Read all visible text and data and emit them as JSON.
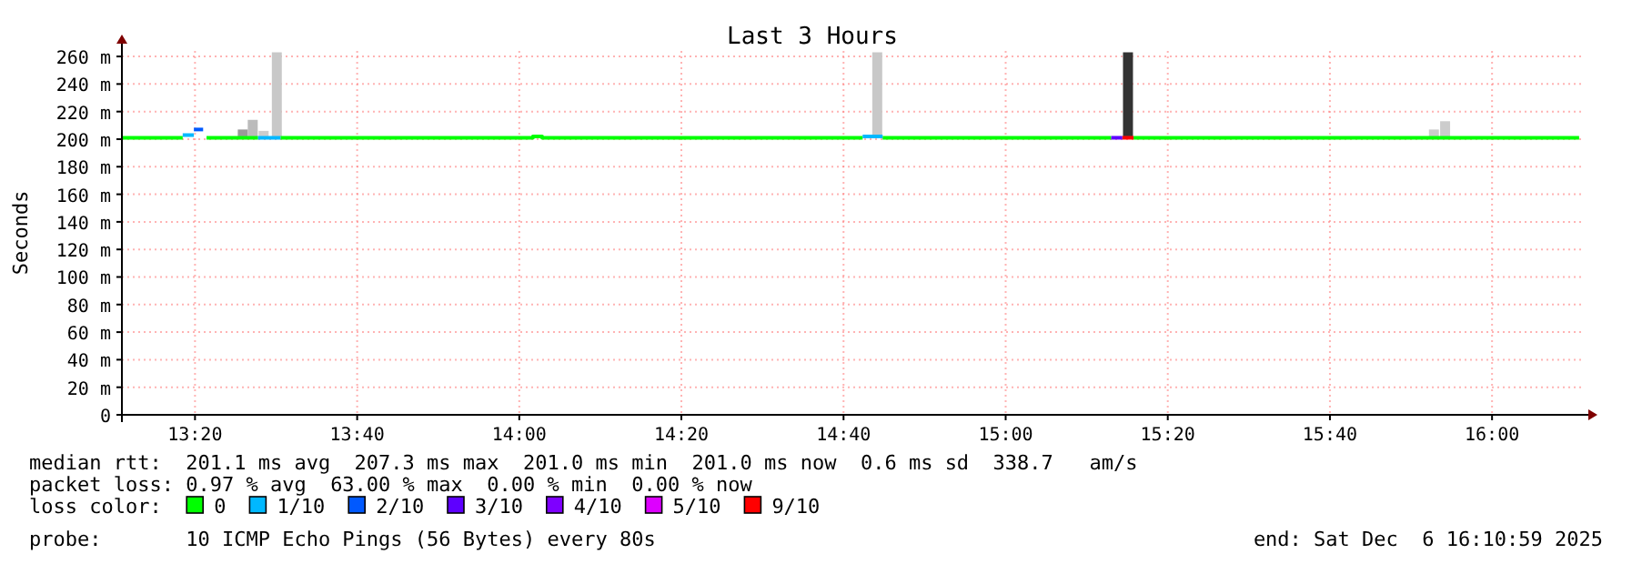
{
  "chart_data": {
    "type": "step",
    "title": "Last 3 Hours",
    "ylabel": "Seconds",
    "legend_title": "loss color:",
    "legend": "bottom",
    "grid": true,
    "xlim": [
      13.183,
      16.183
    ],
    "ylim": [
      0,
      264
    ],
    "xticks": [
      {
        "value": 13.3333,
        "label": "13:20"
      },
      {
        "value": 13.6667,
        "label": "13:40"
      },
      {
        "value": 14,
        "label": "14:00"
      },
      {
        "value": 14.3333,
        "label": "14:20"
      },
      {
        "value": 14.6667,
        "label": "14:40"
      },
      {
        "value": 15,
        "label": "15:00"
      },
      {
        "value": 15.3333,
        "label": "15:20"
      },
      {
        "value": 15.6667,
        "label": "15:40"
      },
      {
        "value": 16,
        "label": "16:00"
      }
    ],
    "yticks": [
      {
        "value": 0,
        "label": "0"
      },
      {
        "value": 20,
        "label": "20 m"
      },
      {
        "value": 40,
        "label": "40 m"
      },
      {
        "value": 60,
        "label": "60 m"
      },
      {
        "value": 80,
        "label": "80 m"
      },
      {
        "value": 100,
        "label": "100 m"
      },
      {
        "value": 120,
        "label": "120 m"
      },
      {
        "value": 140,
        "label": "140 m"
      },
      {
        "value": 160,
        "label": "160 m"
      },
      {
        "value": 180,
        "label": "180 m"
      },
      {
        "value": 200,
        "label": "200 m"
      },
      {
        "value": 220,
        "label": "220 m"
      },
      {
        "value": 240,
        "label": "240 m"
      },
      {
        "value": 260,
        "label": "260 m"
      }
    ],
    "series": [
      {
        "type": "bar",
        "x": [
          13.4315,
          13.452,
          13.4745,
          13.5015,
          14.736,
          15.2515,
          15.8805,
          15.9035
        ],
        "base": [
          202,
          202,
          202,
          202,
          202,
          202,
          201,
          201
        ],
        "values": [
          5,
          12,
          4,
          61,
          61,
          61,
          6,
          12
        ],
        "colors": [
          "#999999",
          "#bbbbbb",
          "#cccccc",
          "#c8c8c8",
          "#c8c8c8",
          "#333333",
          "#cccccc",
          "#cccccc"
        ]
      },
      {
        "name": "0",
        "color": "#00ff00",
        "x": [
          13.183,
          13.308,
          13.31,
          13.357,
          13.463,
          13.465,
          13.509,
          14.028,
          14.047,
          14.706,
          14.708,
          14.747,
          15.217,
          15.219,
          15.263,
          16.179
        ],
        "values": [
          201,
          201,
          null,
          201,
          201,
          null,
          201,
          202,
          201,
          201,
          null,
          201,
          201,
          null,
          201,
          201
        ]
      },
      {
        "name": "1/10",
        "color": "#00b8ff",
        "x": [
          13.308,
          13.331,
          13.34,
          13.463,
          13.509,
          13.52,
          14.706,
          14.747
        ],
        "values": [
          203,
          203,
          null,
          201,
          201,
          null,
          202,
          202
        ]
      },
      {
        "name": "2/10",
        "color": "#0059ff",
        "x": [
          13.331,
          13.35
        ],
        "values": [
          207,
          207
        ]
      },
      {
        "name": "3/10",
        "color": "#5e00ff",
        "x": [
          15.217,
          15.24
        ],
        "values": [
          201,
          201
        ]
      },
      {
        "name": "4/10",
        "color": "#7e00ff"
      },
      {
        "name": "5/10",
        "color": "#dd00ff"
      },
      {
        "name": "9/10",
        "color": "#ff0000",
        "x": [
          15.24,
          15.263
        ],
        "values": [
          201,
          201
        ]
      }
    ],
    "annotations": [
      "median rtt:  201.1 ms avg  207.3 ms max  201.0 ms min  201.0 ms now  0.6 ms sd  338.7   am/s",
      "packet loss: 0.97 % avg  63.00 % max  0.00 % min  0.00 % now",
      "probe:       10 ICMP Echo Pings (56 Bytes) every 80s",
      "end: Sat Dec  6 16:10:59 2025"
    ]
  }
}
